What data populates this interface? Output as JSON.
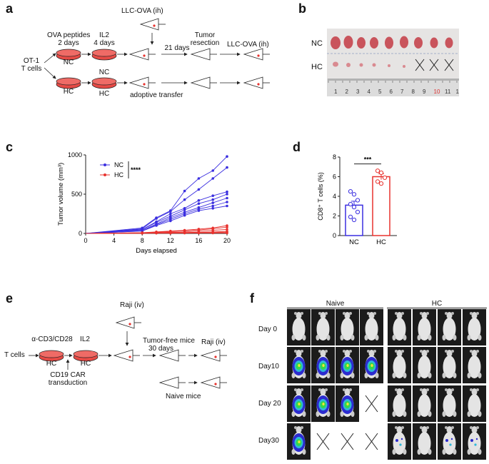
{
  "panels": {
    "a": {
      "label": "a",
      "texts": {
        "llc_top": "LLC-OVA (ih)",
        "ova": "OVA peptides",
        "ova_days": "2 days",
        "il2": "IL2",
        "il2_days": "4 days",
        "days21": "21 days",
        "tumor": "Tumor",
        "resection": "resection",
        "llc_right": "LLC-OVA (ih)",
        "ot1": "OT-1",
        "tcells": "T cells",
        "nc1": "NC",
        "nc2": "NC",
        "hc1": "HC",
        "hc2": "HC",
        "adoptive": "adoptive transfer"
      }
    },
    "b": {
      "label": "b",
      "nc": "NC",
      "hc": "HC",
      "ruler_numbers": [
        "1",
        "2",
        "3",
        "4",
        "5",
        "6",
        "7",
        "8",
        "9",
        "10",
        "11",
        "1"
      ]
    },
    "c": {
      "label": "c",
      "ylabel": "Tumor volume (mm³)",
      "xlabel": "Days elapsed",
      "legend_nc": "NC",
      "legend_hc": "HC",
      "sig": "****",
      "yticks": [
        "0",
        "500",
        "1000"
      ],
      "xticks": [
        "0",
        "4",
        "8",
        "12",
        "16",
        "20"
      ]
    },
    "d": {
      "label": "d",
      "ylabel": "CD8⁺ T cells (%)",
      "sig": "***",
      "yticks": [
        "0",
        "2",
        "4",
        "6",
        "8"
      ],
      "cat_nc": "NC",
      "cat_hc": "HC"
    },
    "e": {
      "label": "e",
      "texts": {
        "raji_top": "Raji (iv)",
        "tcells": "T cells",
        "cd3": "α-CD3/CD28",
        "il2": "IL2",
        "hc1": "HC",
        "hc2": "HC",
        "car": "CD19 CAR",
        "transduction": "transduction",
        "tumor_free": "Tumor-free mice",
        "days30": "30 days",
        "raji_right": "Raji (iv)",
        "naive_mice": "Naive mice"
      }
    },
    "f": {
      "label": "f",
      "group_naive": "Naive",
      "group_hc": "HC",
      "rows": [
        "Day 0",
        "Day10",
        "Day 20",
        "Day30"
      ]
    }
  },
  "chart_data": [
    {
      "type": "line",
      "panel": "c",
      "xlabel": "Days elapsed",
      "ylabel": "Tumor volume (mm³)",
      "xlim": [
        0,
        20
      ],
      "ylim": [
        0,
        1000
      ],
      "x": [
        0,
        8,
        10,
        12,
        14,
        16,
        18,
        20
      ],
      "legend": "top-left",
      "series": [
        {
          "name": "NC",
          "color": "#3b2fe0",
          "values": [
            0,
            70,
            200,
            290,
            540,
            700,
            800,
            980
          ]
        },
        {
          "name": "NC",
          "color": "#3b2fe0",
          "values": [
            0,
            60,
            190,
            280,
            430,
            560,
            700,
            840
          ]
        },
        {
          "name": "NC",
          "color": "#3b2fe0",
          "values": [
            0,
            50,
            150,
            250,
            320,
            420,
            480,
            530
          ]
        },
        {
          "name": "NC",
          "color": "#3b2fe0",
          "values": [
            0,
            50,
            140,
            220,
            300,
            380,
            430,
            500
          ]
        },
        {
          "name": "NC",
          "color": "#3b2fe0",
          "values": [
            0,
            40,
            120,
            200,
            270,
            330,
            390,
            450
          ]
        },
        {
          "name": "NC",
          "color": "#3b2fe0",
          "values": [
            0,
            30,
            110,
            180,
            250,
            310,
            350,
            400
          ]
        },
        {
          "name": "NC",
          "color": "#3b2fe0",
          "values": [
            0,
            30,
            100,
            160,
            230,
            290,
            320,
            350
          ]
        },
        {
          "name": "HC",
          "color": "#e8322e",
          "values": [
            0,
            10,
            20,
            30,
            40,
            55,
            70,
            100
          ]
        },
        {
          "name": "HC",
          "color": "#e8322e",
          "values": [
            0,
            8,
            15,
            25,
            35,
            45,
            60,
            80
          ]
        },
        {
          "name": "HC",
          "color": "#e8322e",
          "values": [
            0,
            5,
            10,
            15,
            20,
            30,
            40,
            50
          ]
        },
        {
          "name": "HC",
          "color": "#e8322e",
          "values": [
            0,
            5,
            8,
            10,
            12,
            15,
            20,
            25
          ]
        },
        {
          "name": "HC",
          "color": "#e8322e",
          "values": [
            0,
            3,
            5,
            6,
            8,
            10,
            12,
            15
          ]
        },
        {
          "name": "HC",
          "color": "#e8322e",
          "values": [
            0,
            2,
            3,
            3,
            4,
            5,
            5,
            5
          ]
        }
      ]
    },
    {
      "type": "bar",
      "panel": "d",
      "categories": [
        "NC",
        "HC"
      ],
      "values": [
        3.1,
        6.0
      ],
      "errors": [
        0.4,
        0.3
      ],
      "points": [
        [
          4.5,
          4.2,
          3.6,
          3.2,
          2.9,
          2.4,
          1.9,
          1.6
        ],
        [
          6.6,
          6.4,
          5.9,
          5.5,
          5.3
        ]
      ],
      "colors": [
        "#3b2fe0",
        "#e8322e"
      ],
      "ylim": [
        0,
        8
      ],
      "ylabel": "CD8⁺ T cells (%)"
    }
  ],
  "mouse_grid": {
    "naive": [
      [
        "none",
        "none",
        "none",
        "none"
      ],
      [
        "signal",
        "signal",
        "signal",
        "signal"
      ],
      [
        "signal",
        "signal",
        "signal",
        "dead"
      ],
      [
        "signal",
        "dead",
        "dead",
        "dead"
      ]
    ],
    "hc": [
      [
        "none",
        "none",
        "none",
        "none"
      ],
      [
        "none",
        "none",
        "none",
        "none"
      ],
      [
        "none",
        "none",
        "none",
        "none"
      ],
      [
        "weak",
        "none",
        "weak",
        "weak"
      ]
    ]
  },
  "colors": {
    "dish": "#e64a45",
    "nc_series": "#3b2fe0",
    "hc_series": "#e8322e",
    "tumor": "#c9545c"
  }
}
